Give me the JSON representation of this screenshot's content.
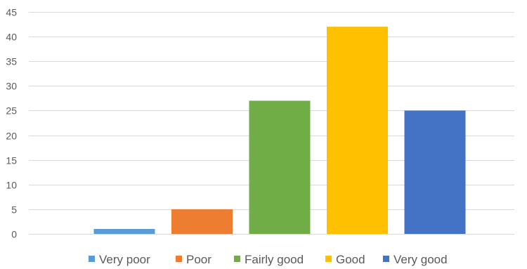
{
  "chart_data": {
    "type": "bar",
    "categories": [
      "Very poor",
      "Poor",
      "Fairly good",
      "Good",
      "Very good"
    ],
    "values": [
      1,
      5,
      27,
      42,
      25
    ],
    "colors": [
      "#5B9BD5",
      "#ED7D31",
      "#70AD47",
      "#FFC000",
      "#4472C4"
    ],
    "ylim": [
      0,
      45
    ],
    "yticks": [
      0,
      5,
      10,
      15,
      20,
      25,
      30,
      35,
      40,
      45
    ],
    "grid": true,
    "legend_position": "bottom",
    "legend": [
      "Very poor",
      "Poor",
      "Fairly good",
      "Good",
      "Very good"
    ]
  }
}
